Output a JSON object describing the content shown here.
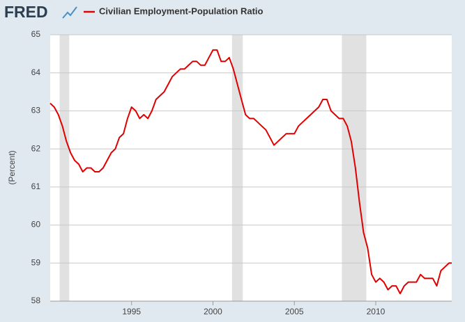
{
  "chart_data": {
    "type": "line",
    "brand": "FRED",
    "title": "Civilian Employment-Population Ratio",
    "ylabel": "(Percent)",
    "x": [
      1990.0,
      1990.25,
      1990.5,
      1990.75,
      1991.0,
      1991.25,
      1991.5,
      1991.75,
      1992.0,
      1992.25,
      1992.5,
      1992.75,
      1993.0,
      1993.25,
      1993.5,
      1993.75,
      1994.0,
      1994.25,
      1994.5,
      1994.75,
      1995.0,
      1995.25,
      1995.5,
      1995.75,
      1996.0,
      1996.25,
      1996.5,
      1996.75,
      1997.0,
      1997.25,
      1997.5,
      1997.75,
      1998.0,
      1998.25,
      1998.5,
      1998.75,
      1999.0,
      1999.25,
      1999.5,
      1999.75,
      2000.0,
      2000.25,
      2000.5,
      2000.75,
      2001.0,
      2001.25,
      2001.5,
      2001.75,
      2002.0,
      2002.25,
      2002.5,
      2002.75,
      2003.0,
      2003.25,
      2003.5,
      2003.75,
      2004.0,
      2004.25,
      2004.5,
      2004.75,
      2005.0,
      2005.25,
      2005.5,
      2005.75,
      2006.0,
      2006.25,
      2006.5,
      2006.75,
      2007.0,
      2007.25,
      2007.5,
      2007.75,
      2008.0,
      2008.25,
      2008.5,
      2008.75,
      2009.0,
      2009.25,
      2009.5,
      2009.75,
      2010.0,
      2010.25,
      2010.5,
      2010.75,
      2011.0,
      2011.25,
      2011.5,
      2011.75,
      2012.0,
      2012.25,
      2012.5,
      2012.75,
      2013.0,
      2013.25,
      2013.5,
      2013.75,
      2014.0,
      2014.25,
      2014.5,
      2014.67
    ],
    "series": [
      {
        "name": "Civilian Employment-Population Ratio",
        "color": "#e00000",
        "values": [
          63.2,
          63.1,
          62.9,
          62.6,
          62.2,
          61.9,
          61.7,
          61.6,
          61.4,
          61.5,
          61.5,
          61.4,
          61.4,
          61.5,
          61.7,
          61.9,
          62.0,
          62.3,
          62.4,
          62.8,
          63.1,
          63.0,
          62.8,
          62.9,
          62.8,
          63.0,
          63.3,
          63.4,
          63.5,
          63.7,
          63.9,
          64.0,
          64.1,
          64.1,
          64.2,
          64.3,
          64.3,
          64.2,
          64.2,
          64.4,
          64.6,
          64.6,
          64.3,
          64.3,
          64.4,
          64.1,
          63.7,
          63.3,
          62.9,
          62.8,
          62.8,
          62.7,
          62.6,
          62.5,
          62.3,
          62.1,
          62.2,
          62.3,
          62.4,
          62.4,
          62.4,
          62.6,
          62.7,
          62.8,
          62.9,
          63.0,
          63.1,
          63.3,
          63.3,
          63.0,
          62.9,
          62.8,
          62.8,
          62.6,
          62.2,
          61.5,
          60.6,
          59.8,
          59.4,
          58.7,
          58.5,
          58.6,
          58.5,
          58.3,
          58.4,
          58.4,
          58.2,
          58.4,
          58.5,
          58.5,
          58.5,
          58.7,
          58.6,
          58.6,
          58.6,
          58.4,
          58.8,
          58.9,
          59.0,
          59.0
        ]
      }
    ],
    "recessions": [
      [
        1990.58,
        1991.17
      ],
      [
        2001.17,
        2001.83
      ],
      [
        2007.92,
        2009.42
      ]
    ],
    "xlim": [
      1990,
      2014.67
    ],
    "xticks": [
      1995,
      2000,
      2005,
      2010
    ],
    "ylim": [
      58,
      65
    ],
    "yticks": [
      58,
      59,
      60,
      61,
      62,
      63,
      64,
      65
    ],
    "grid": true
  }
}
